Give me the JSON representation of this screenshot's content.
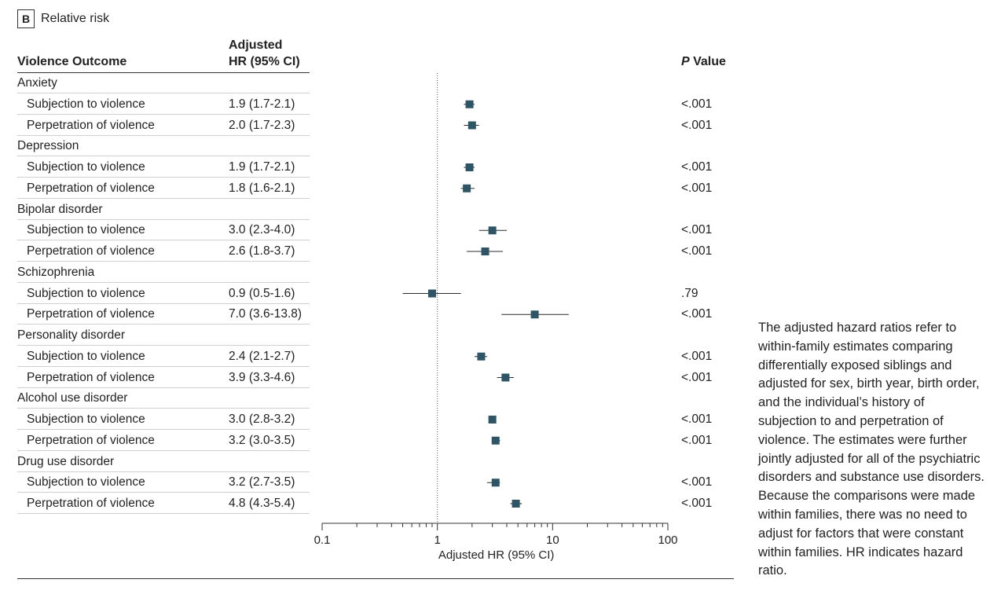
{
  "panel": {
    "letter": "B",
    "title": "Relative risk"
  },
  "headers": {
    "outcome": "Violence Outcome",
    "hr_line1": "Adjusted",
    "hr_line2": "HR (95% CI)",
    "p_italic": "P",
    "p_rest": " Value"
  },
  "rows": [
    {
      "kind": "cat",
      "label": "Anxiety"
    },
    {
      "kind": "sub",
      "label": "Subjection to violence",
      "hr_text": "1.9 (1.7-2.1)",
      "p": "<.001"
    },
    {
      "kind": "sub",
      "label": "Perpetration of violence",
      "hr_text": "2.0 (1.7-2.3)",
      "p": "<.001"
    },
    {
      "kind": "cat",
      "label": "Depression"
    },
    {
      "kind": "sub",
      "label": "Subjection to violence",
      "hr_text": "1.9 (1.7-2.1)",
      "p": "<.001"
    },
    {
      "kind": "sub",
      "label": "Perpetration of violence",
      "hr_text": "1.8 (1.6-2.1)",
      "p": "<.001"
    },
    {
      "kind": "cat",
      "label": "Bipolar disorder"
    },
    {
      "kind": "sub",
      "label": "Subjection to violence",
      "hr_text": "3.0 (2.3-4.0)",
      "p": "<.001"
    },
    {
      "kind": "sub",
      "label": "Perpetration of violence",
      "hr_text": "2.6 (1.8-3.7)",
      "p": "<.001"
    },
    {
      "kind": "cat",
      "label": "Schizophrenia"
    },
    {
      "kind": "sub",
      "label": "Subjection to violence",
      "hr_text": "0.9 (0.5-1.6)",
      "p": ".79"
    },
    {
      "kind": "sub",
      "label": "Perpetration of violence",
      "hr_text": "7.0 (3.6-13.8)",
      "p": "<.001"
    },
    {
      "kind": "cat",
      "label": "Personality disorder"
    },
    {
      "kind": "sub",
      "label": "Subjection to violence",
      "hr_text": "2.4 (2.1-2.7)",
      "p": "<.001"
    },
    {
      "kind": "sub",
      "label": "Perpetration of violence",
      "hr_text": "3.9 (3.3-4.6)",
      "p": "<.001"
    },
    {
      "kind": "cat",
      "label": "Alcohol use disorder"
    },
    {
      "kind": "sub",
      "label": "Subjection to violence",
      "hr_text": "3.0 (2.8-3.2)",
      "p": "<.001"
    },
    {
      "kind": "sub",
      "label": "Perpetration of violence",
      "hr_text": "3.2 (3.0-3.5)",
      "p": "<.001"
    },
    {
      "kind": "cat",
      "label": "Drug use disorder"
    },
    {
      "kind": "sub",
      "label": "Subjection to violence",
      "hr_text": "3.2 (2.7-3.5)",
      "p": "<.001"
    },
    {
      "kind": "sub",
      "label": "Perpetration of violence",
      "hr_text": "4.8 (4.3-5.4)",
      "p": "<.001"
    }
  ],
  "chart_data": {
    "type": "forest",
    "xscale": "log",
    "xlim": [
      0.1,
      100
    ],
    "reference_line": 1,
    "xlabel": "Adjusted HR (95% CI)",
    "xticks": [
      0.1,
      1,
      10,
      100
    ],
    "xtick_labels": [
      "0.1",
      "1",
      "10",
      "100"
    ],
    "marker_color": "#2e5566",
    "points": [
      {
        "group": "Anxiety",
        "outcome": "Subjection to violence",
        "hr": 1.9,
        "lo": 1.7,
        "hi": 2.1
      },
      {
        "group": "Anxiety",
        "outcome": "Perpetration of violence",
        "hr": 2.0,
        "lo": 1.7,
        "hi": 2.3
      },
      {
        "group": "Depression",
        "outcome": "Subjection to violence",
        "hr": 1.9,
        "lo": 1.7,
        "hi": 2.1
      },
      {
        "group": "Depression",
        "outcome": "Perpetration of violence",
        "hr": 1.8,
        "lo": 1.6,
        "hi": 2.1
      },
      {
        "group": "Bipolar disorder",
        "outcome": "Subjection to violence",
        "hr": 3.0,
        "lo": 2.3,
        "hi": 4.0
      },
      {
        "group": "Bipolar disorder",
        "outcome": "Perpetration of violence",
        "hr": 2.6,
        "lo": 1.8,
        "hi": 3.7
      },
      {
        "group": "Schizophrenia",
        "outcome": "Subjection to violence",
        "hr": 0.9,
        "lo": 0.5,
        "hi": 1.6
      },
      {
        "group": "Schizophrenia",
        "outcome": "Perpetration of violence",
        "hr": 7.0,
        "lo": 3.6,
        "hi": 13.8
      },
      {
        "group": "Personality disorder",
        "outcome": "Subjection to violence",
        "hr": 2.4,
        "lo": 2.1,
        "hi": 2.7
      },
      {
        "group": "Personality disorder",
        "outcome": "Perpetration of violence",
        "hr": 3.9,
        "lo": 3.3,
        "hi": 4.6
      },
      {
        "group": "Alcohol use disorder",
        "outcome": "Subjection to violence",
        "hr": 3.0,
        "lo": 2.8,
        "hi": 3.2
      },
      {
        "group": "Alcohol use disorder",
        "outcome": "Perpetration of violence",
        "hr": 3.2,
        "lo": 3.0,
        "hi": 3.5
      },
      {
        "group": "Drug use disorder",
        "outcome": "Subjection to violence",
        "hr": 3.2,
        "lo": 2.7,
        "hi": 3.5
      },
      {
        "group": "Drug use disorder",
        "outcome": "Perpetration of violence",
        "hr": 4.8,
        "lo": 4.3,
        "hi": 5.4
      }
    ]
  },
  "note": "The adjusted hazard ratios refer to within-family estimates comparing differentially exposed siblings and adjusted for sex, birth year, birth order, and the individual’s history of subjection to and perpetration of violence. The estimates were further jointly adjusted for all of the psychiatric disorders and substance use disorders. Because the comparisons were made within families, there was no need to adjust for factors that were constant within families. HR indicates hazard ratio."
}
